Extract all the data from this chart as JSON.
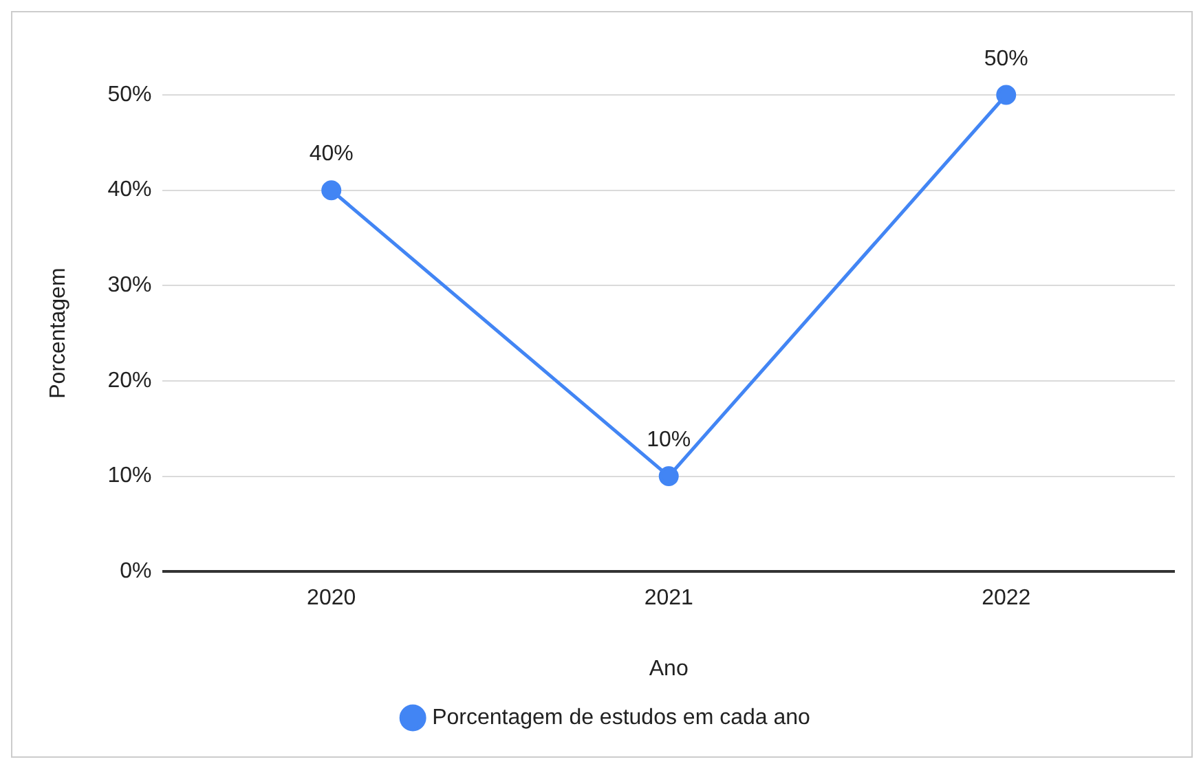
{
  "chart_data": {
    "type": "line",
    "xlabel": "Ano",
    "ylabel": "Porcentagem",
    "categories": [
      "2020",
      "2021",
      "2022"
    ],
    "series": [
      {
        "name": "Porcentagem de estudos em cada ano",
        "color": "#4285f4",
        "values": [
          40,
          10,
          50
        ],
        "value_labels": [
          "40%",
          "10%",
          "50%"
        ]
      }
    ],
    "ylim": [
      0,
      50
    ],
    "yticks": [
      {
        "value": 0,
        "label": "0%"
      },
      {
        "value": 10,
        "label": "10%"
      },
      {
        "value": 20,
        "label": "20%"
      },
      {
        "value": 30,
        "label": "30%"
      },
      {
        "value": 40,
        "label": "40%"
      },
      {
        "value": 50,
        "label": "50%"
      }
    ],
    "grid": "y",
    "legend": "bottom",
    "marker": "circle",
    "line_style": "solid"
  }
}
